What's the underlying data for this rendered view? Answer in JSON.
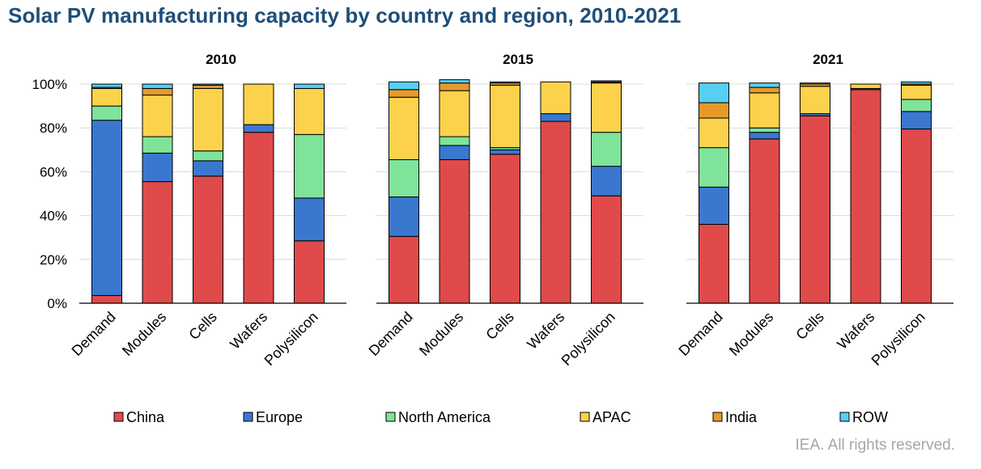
{
  "title": "Solar PV manufacturing capacity by country and region, 2010-2021",
  "footer": "IEA. All rights reserved.",
  "chart_data": {
    "type": "bar",
    "stacked": true,
    "categories": [
      "Demand",
      "Modules",
      "Cells",
      "Wafers",
      "Polysilicon"
    ],
    "y_tick_labels": [
      "0%",
      "20%",
      "40%",
      "60%",
      "80%",
      "100%"
    ],
    "ylim": [
      0,
      100
    ],
    "legend": [
      {
        "name": "China",
        "color": "#e04a4a"
      },
      {
        "name": "Europe",
        "color": "#3a78d0"
      },
      {
        "name": "North America",
        "color": "#7fe39a"
      },
      {
        "name": "APAC",
        "color": "#fcd24d"
      },
      {
        "name": "India",
        "color": "#e69a2a"
      },
      {
        "name": "ROW",
        "color": "#55d0f2"
      }
    ],
    "panels": [
      {
        "title": "2010",
        "series": [
          {
            "name": "China",
            "values": [
              3.5,
              55.5,
              58,
              78,
              28.5
            ]
          },
          {
            "name": "Europe",
            "values": [
              80,
              13,
              7,
              3.5,
              19.5
            ]
          },
          {
            "name": "North America",
            "values": [
              6.5,
              7.5,
              4.5,
              0,
              29
            ]
          },
          {
            "name": "APAC",
            "values": [
              8,
              19,
              28.5,
              18.5,
              21
            ]
          },
          {
            "name": "India",
            "values": [
              0.5,
              3,
              1.5,
              0,
              0
            ]
          },
          {
            "name": "ROW",
            "values": [
              1.5,
              2,
              0.5,
              0,
              2
            ]
          }
        ]
      },
      {
        "title": "2015",
        "series": [
          {
            "name": "China",
            "values": [
              30.5,
              65.5,
              68,
              83,
              49
            ]
          },
          {
            "name": "Europe",
            "values": [
              18,
              6.5,
              2,
              3.5,
              13.5
            ]
          },
          {
            "name": "North America",
            "values": [
              17,
              4,
              1,
              0,
              15.5
            ]
          },
          {
            "name": "APAC",
            "values": [
              28.5,
              21,
              28.5,
              14.5,
              22.5
            ]
          },
          {
            "name": "India",
            "values": [
              3.5,
              3.5,
              1,
              0,
              0.5
            ]
          },
          {
            "name": "ROW",
            "values": [
              3.5,
              1.5,
              0.5,
              0,
              0.5
            ]
          }
        ]
      },
      {
        "title": "2021",
        "series": [
          {
            "name": "China",
            "values": [
              36,
              75,
              85.5,
              97.5,
              79.5
            ]
          },
          {
            "name": "Europe",
            "values": [
              17,
              3,
              1,
              0.5,
              8
            ]
          },
          {
            "name": "North America",
            "values": [
              18,
              2,
              0,
              0,
              5.5
            ]
          },
          {
            "name": "APAC",
            "values": [
              13.5,
              16,
              12.5,
              2,
              6.5
            ]
          },
          {
            "name": "India",
            "values": [
              7,
              2.5,
              1,
              0,
              0.5
            ]
          },
          {
            "name": "ROW",
            "values": [
              9,
              2,
              0.5,
              0,
              1
            ]
          }
        ]
      }
    ]
  }
}
